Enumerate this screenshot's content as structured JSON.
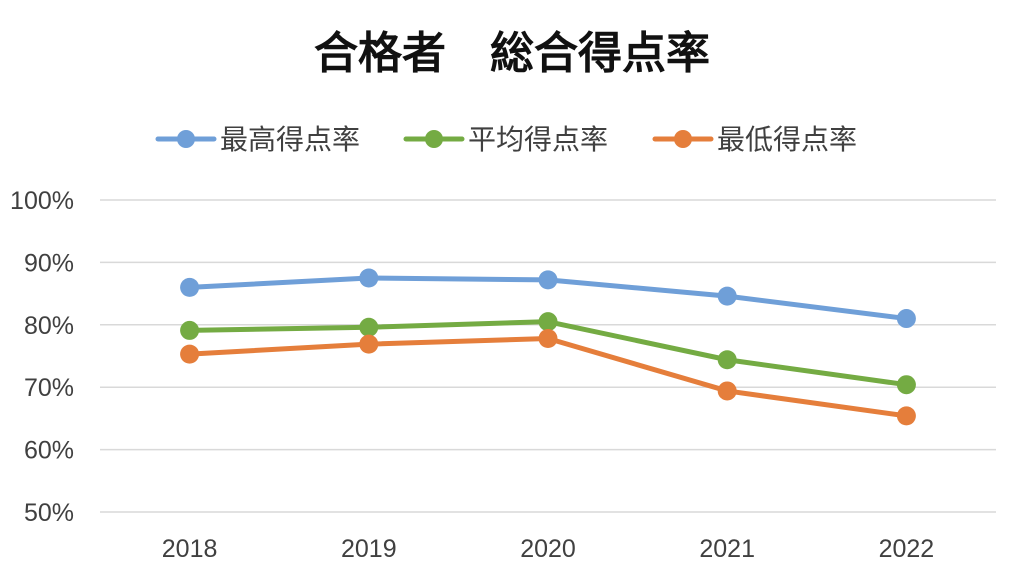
{
  "chart_data": {
    "type": "line",
    "title": "合格者　総合得点率",
    "categories": [
      "2018",
      "2019",
      "2020",
      "2021",
      "2022"
    ],
    "ylim": [
      50,
      100
    ],
    "yticks": [
      100,
      90,
      80,
      70,
      60,
      50
    ],
    "ytick_labels": [
      "100%",
      "90%",
      "80%",
      "70%",
      "60%",
      "50%"
    ],
    "grid": true,
    "legend_position": "top",
    "series": [
      {
        "name": "最高得点率",
        "color": "#6f9fd8",
        "values": [
          86,
          87.5,
          87.2,
          84.6,
          81
        ]
      },
      {
        "name": "平均得点率",
        "color": "#74ab43",
        "values": [
          79.1,
          79.6,
          80.5,
          74.4,
          70.4
        ]
      },
      {
        "name": "最低得点率",
        "color": "#e57e3b",
        "values": [
          75.3,
          76.9,
          77.8,
          69.4,
          65.4
        ]
      }
    ]
  }
}
